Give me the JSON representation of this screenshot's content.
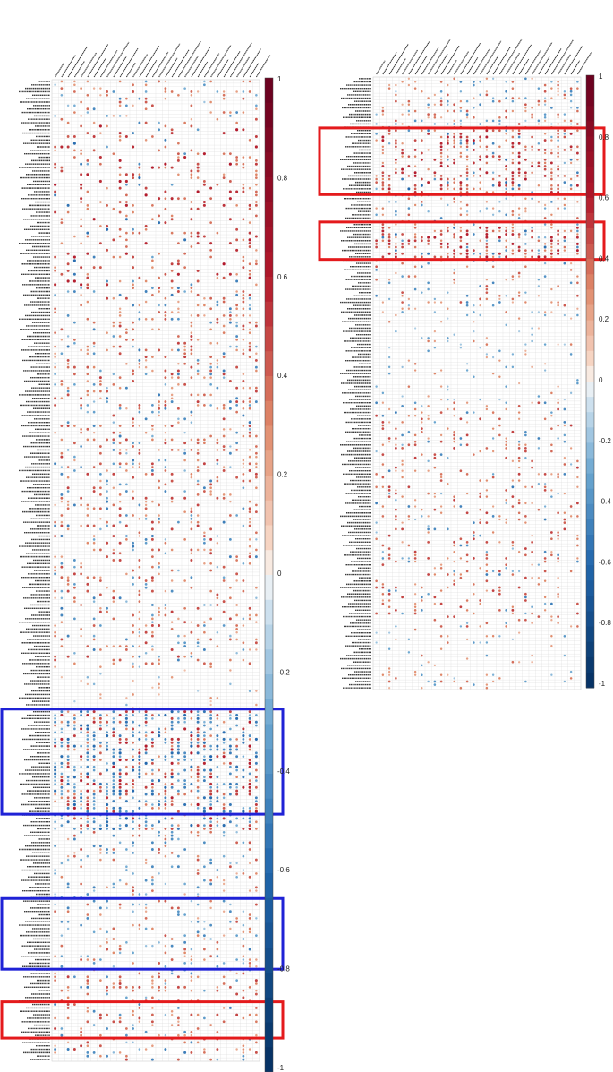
{
  "colors": {
    "positive": "#b2182b",
    "negative": "#2166ac",
    "highlight_red": "#e41a1c",
    "highlight_blue": "#1f22d6",
    "grid": "#cfcfcf"
  },
  "chart_data": [
    {
      "type": "heatmap",
      "name": "left-panel",
      "n_cols": 32,
      "n_rows": 285,
      "row_label_blocks": [
        "AcCa",
        "Cer",
        "Cer(d)",
        "CerP",
        "ChE",
        "CL",
        "DG",
        "Hex1Cer",
        "Hex2Cer",
        "Hex3Cer",
        "LPC",
        "LPE",
        "PC",
        "PC(O)",
        "PC(P)",
        "PE"
      ],
      "row_labels_sample": [
        "AcCa(20:3)",
        "AcCa(18:2)",
        "AcCa(18:1)",
        "AcCa(18:0)",
        "AcCa(16:1)",
        "AcCa(16:0)",
        "AcCa(14:1)",
        "AcCa(14:0)",
        "AcCa(12:0)",
        "AcCa(10:0)",
        "AcCa(8:0)",
        "AcCa(6:0)",
        "AcCa(4:0)"
      ],
      "color_scale": {
        "min": -1,
        "max": 1,
        "ticks": [
          "1",
          "0.8",
          "0.6",
          "0.4",
          "0.2",
          "0",
          "-0.2",
          "-0.4",
          "-0.6",
          "-0.8",
          "-1"
        ]
      },
      "bands": [
        {
          "rows": [
            0,
            13
          ],
          "pos": 0.16,
          "neg": 0.07,
          "mag": 0.45
        },
        {
          "rows": [
            13,
            60
          ],
          "pos": 0.18,
          "neg": 0.02,
          "mag": 0.6
        },
        {
          "rows": [
            60,
            112
          ],
          "pos": 0.2,
          "neg": 0.06,
          "mag": 0.5
        },
        {
          "rows": [
            112,
            170
          ],
          "pos": 0.18,
          "neg": 0.05,
          "mag": 0.5
        },
        {
          "rows": [
            170,
            183
          ],
          "pos": 0.04,
          "neg": 0.02,
          "mag": 0.3
        },
        {
          "rows": [
            183,
            218
          ],
          "pos": 0.2,
          "neg": 0.3,
          "mag": 0.6
        },
        {
          "rows": [
            218,
            260
          ],
          "pos": 0.1,
          "neg": 0.1,
          "mag": 0.45
        },
        {
          "rows": [
            260,
            285
          ],
          "pos": 0.18,
          "neg": 0.06,
          "mag": 0.5
        }
      ],
      "highlights": [
        {
          "color": "red",
          "rows": [
            268,
            278
          ]
        },
        {
          "color": "blue",
          "rows": [
            183,
            213
          ]
        },
        {
          "color": "blue",
          "rows": [
            238,
            258
          ]
        }
      ],
      "seed": 11
    },
    {
      "type": "heatmap",
      "name": "right-panel",
      "n_cols": 32,
      "n_rows": 189,
      "row_label_blocks": [
        "PE(O)",
        "PE(P)",
        "PG",
        "PI",
        "PS",
        "SM",
        "TG",
        "WE",
        "ZyE"
      ],
      "row_labels_sample": [
        "PE(O-18:1/22:6)",
        "PE(P-16:0/20:4)",
        "PI(18:0/20:4)",
        "PS(18:0/18:1)",
        "SM(d18:1/16:0)",
        "TG(16:0/18:1/18:2)",
        "WE(20:0)",
        "ZyE(20:4)"
      ],
      "color_scale": {
        "min": -1,
        "max": 1,
        "ticks": [
          "1",
          "0.8",
          "0.6",
          "0.4",
          "0.2",
          "0",
          "-0.2",
          "-0.4",
          "-0.6",
          "-0.8",
          "-1"
        ]
      },
      "bands": [
        {
          "rows": [
            0,
            16
          ],
          "pos": 0.16,
          "neg": 0.12,
          "mag": 0.45
        },
        {
          "rows": [
            16,
            36
          ],
          "pos": 0.35,
          "neg": 0.05,
          "mag": 0.6
        },
        {
          "rows": [
            36,
            46
          ],
          "pos": 0.15,
          "neg": 0.1,
          "mag": 0.45
        },
        {
          "rows": [
            46,
            56
          ],
          "pos": 0.4,
          "neg": 0.06,
          "mag": 0.6
        },
        {
          "rows": [
            56,
            72
          ],
          "pos": 0.1,
          "neg": 0.05,
          "mag": 0.45
        },
        {
          "rows": [
            72,
            100
          ],
          "pos": 0.05,
          "neg": 0.05,
          "mag": 0.35
        },
        {
          "rows": [
            100,
            170
          ],
          "pos": 0.16,
          "neg": 0.04,
          "mag": 0.5
        },
        {
          "rows": [
            170,
            189
          ],
          "pos": 0.06,
          "neg": 0.05,
          "mag": 0.4
        }
      ],
      "highlights": [
        {
          "color": "red",
          "rows": [
            16,
            36
          ]
        },
        {
          "color": "red",
          "rows": [
            45,
            56
          ]
        }
      ],
      "seed": 29
    }
  ]
}
